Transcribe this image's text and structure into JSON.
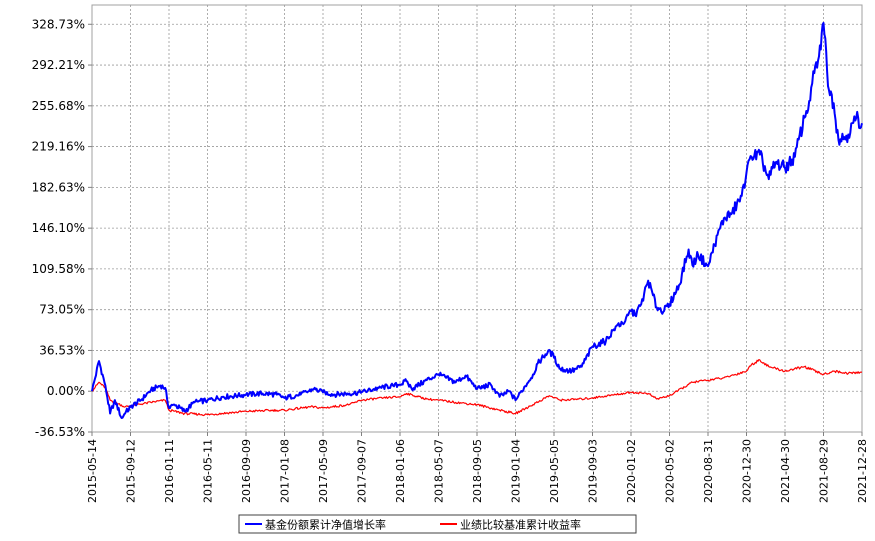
{
  "chart_data": {
    "type": "line",
    "title": "",
    "xlabel": "",
    "ylabel": "",
    "ylim": [
      -36.53,
      346.0
    ],
    "grid": true,
    "legend_position": "bottom-center",
    "y_ticks": [
      "-36.53%",
      "0.00%",
      "36.53%",
      "73.05%",
      "109.58%",
      "146.10%",
      "182.63%",
      "219.16%",
      "255.68%",
      "292.21%",
      "328.73%"
    ],
    "y_tick_values": [
      -36.53,
      0.0,
      36.53,
      73.05,
      109.58,
      146.1,
      182.63,
      219.16,
      255.68,
      292.21,
      328.73
    ],
    "x_ticks": [
      "2015-05-14",
      "2015-09-12",
      "2016-01-11",
      "2016-05-11",
      "2016-09-09",
      "2017-01-08",
      "2017-05-09",
      "2017-09-07",
      "2018-01-06",
      "2018-05-07",
      "2018-09-05",
      "2019-01-04",
      "2019-05-05",
      "2019-09-03",
      "2020-01-02",
      "2020-05-02",
      "2020-08-31",
      "2020-12-30",
      "2021-04-30",
      "2021-08-29",
      "2021-12-28"
    ],
    "series": [
      {
        "name": "基金份额累计净值增长率",
        "color": "#0000ff",
        "x": [
          "2015-05-14",
          "2015-06-05",
          "2015-06-25",
          "2015-07-10",
          "2015-07-25",
          "2015-08-15",
          "2015-08-26",
          "2015-09-12",
          "2015-10-15",
          "2015-11-15",
          "2015-12-15",
          "2015-12-30",
          "2016-01-11",
          "2016-01-28",
          "2016-02-29",
          "2016-03-31",
          "2016-05-11",
          "2016-06-30",
          "2016-08-15",
          "2016-09-09",
          "2016-10-31",
          "2016-12-15",
          "2017-01-08",
          "2017-02-28",
          "2017-04-10",
          "2017-05-09",
          "2017-06-15",
          "2017-07-31",
          "2017-09-07",
          "2017-10-31",
          "2017-12-15",
          "2018-01-06",
          "2018-01-26",
          "2018-02-12",
          "2018-03-31",
          "2018-05-07",
          "2018-06-30",
          "2018-07-31",
          "2018-09-05",
          "2018-10-18",
          "2018-11-15",
          "2018-12-15",
          "2019-01-04",
          "2019-02-28",
          "2019-03-15",
          "2019-04-20",
          "2019-05-05",
          "2019-05-25",
          "2019-06-30",
          "2019-07-31",
          "2019-09-03",
          "2019-10-15",
          "2019-11-15",
          "2019-12-15",
          "2020-01-02",
          "2020-01-15",
          "2020-02-03",
          "2020-02-25",
          "2020-03-23",
          "2020-04-15",
          "2020-05-02",
          "2020-06-01",
          "2020-07-01",
          "2020-07-13",
          "2020-07-31",
          "2020-08-31",
          "2020-09-30",
          "2020-10-20",
          "2020-11-15",
          "2020-12-15",
          "2020-12-30",
          "2021-01-15",
          "2021-02-10",
          "2021-03-10",
          "2021-03-31",
          "2021-04-30",
          "2021-05-31",
          "2021-06-30",
          "2021-07-15",
          "2021-07-31",
          "2021-08-15",
          "2021-08-29",
          "2021-09-15",
          "2021-09-30",
          "2021-10-15",
          "2021-11-15",
          "2021-12-10",
          "2021-12-28"
        ],
        "values": [
          0.0,
          27.0,
          5.0,
          -20.0,
          -8.0,
          -24.0,
          -20.0,
          -14.0,
          -8.0,
          1.0,
          5.0,
          3.0,
          -15.0,
          -12.0,
          -18.0,
          -10.0,
          -8.0,
          -5.0,
          -4.0,
          -3.0,
          -2.0,
          -3.0,
          -6.0,
          -3.0,
          2.0,
          -1.0,
          -3.0,
          -2.0,
          -1.0,
          3.0,
          5.0,
          6.0,
          9.0,
          2.0,
          10.0,
          15.0,
          8.0,
          14.0,
          2.0,
          6.0,
          -5.0,
          0.0,
          -8.0,
          15.0,
          25.0,
          37.0,
          30.0,
          20.0,
          18.0,
          22.0,
          40.0,
          45.0,
          58.0,
          63.0,
          72.0,
          68.0,
          78.0,
          99.0,
          75.0,
          72.0,
          78.0,
          95.0,
          127.0,
          113.0,
          122.0,
          112.0,
          140.0,
          155.0,
          160.0,
          175.0,
          196.0,
          210.0,
          212.0,
          190.0,
          205.0,
          200.0,
          210.0,
          245.0,
          260.0,
          285.0,
          300.0,
          330.0,
          270.0,
          258.0,
          225.0,
          230.0,
          245.0,
          240.0
        ]
      },
      {
        "name": "业绩比较基准累计收益率",
        "color": "#ff0000",
        "x": [
          "2015-05-14",
          "2015-06-05",
          "2015-06-25",
          "2015-07-10",
          "2015-08-26",
          "2015-09-12",
          "2015-11-15",
          "2015-12-30",
          "2016-01-11",
          "2016-02-29",
          "2016-05-11",
          "2016-07-31",
          "2016-09-09",
          "2016-12-15",
          "2017-01-08",
          "2017-03-31",
          "2017-05-09",
          "2017-07-31",
          "2017-09-07",
          "2017-11-15",
          "2018-01-06",
          "2018-01-26",
          "2018-03-31",
          "2018-05-07",
          "2018-06-30",
          "2018-09-05",
          "2018-11-15",
          "2019-01-04",
          "2019-02-28",
          "2019-04-20",
          "2019-05-25",
          "2019-07-31",
          "2019-09-03",
          "2019-11-15",
          "2020-01-02",
          "2020-02-25",
          "2020-03-23",
          "2020-05-02",
          "2020-07-13",
          "2020-08-31",
          "2020-10-20",
          "2020-12-30",
          "2021-01-15",
          "2021-02-10",
          "2021-03-10",
          "2021-04-30",
          "2021-06-30",
          "2021-08-29",
          "2021-09-30",
          "2021-11-15",
          "2021-12-28"
        ],
        "values": [
          0.0,
          8.0,
          3.0,
          -8.0,
          -14.0,
          -13.0,
          -10.0,
          -8.0,
          -17.0,
          -20.0,
          -21.0,
          -19.0,
          -18.0,
          -17.0,
          -17.0,
          -14.0,
          -15.0,
          -12.0,
          -8.0,
          -6.0,
          -5.0,
          -2.0,
          -7.0,
          -8.0,
          -10.0,
          -12.0,
          -17.0,
          -20.0,
          -12.0,
          -4.0,
          -8.0,
          -7.0,
          -6.0,
          -3.0,
          -1.0,
          -2.0,
          -7.0,
          -4.0,
          8.0,
          10.0,
          12.0,
          18.0,
          24.0,
          28.0,
          22.0,
          18.0,
          22.0,
          15.0,
          18.0,
          16.0,
          17.0
        ]
      }
    ]
  }
}
